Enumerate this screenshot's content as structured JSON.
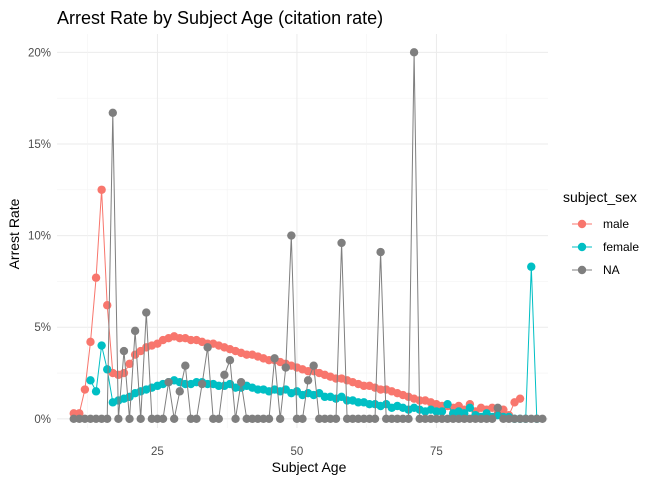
{
  "chart_data": {
    "type": "line",
    "title": "Arrest Rate by Subject Age (citation rate)",
    "xlabel": "Subject Age",
    "ylabel": "Arrest Rate",
    "xlim": [
      7,
      95
    ],
    "ylim": [
      -0.005,
      0.21
    ],
    "x_ticks": [
      25,
      50,
      75
    ],
    "x_tick_labels": [
      "25",
      "50",
      "75"
    ],
    "y_ticks": [
      0,
      0.05,
      0.1,
      0.15,
      0.2
    ],
    "y_tick_labels": [
      "0%",
      "5%",
      "10%",
      "15%",
      "20%"
    ],
    "grid": true,
    "legend": {
      "title": "subject_sex",
      "position": "right"
    },
    "series": [
      {
        "name": "male",
        "color": "#F8766D",
        "x": [
          10,
          11,
          12,
          13,
          14,
          15,
          16,
          17,
          18,
          19,
          20,
          21,
          22,
          23,
          24,
          25,
          26,
          27,
          28,
          29,
          30,
          31,
          32,
          33,
          34,
          35,
          36,
          37,
          38,
          39,
          40,
          41,
          42,
          43,
          44,
          45,
          46,
          47,
          48,
          49,
          50,
          51,
          52,
          53,
          54,
          55,
          56,
          57,
          58,
          59,
          60,
          61,
          62,
          63,
          64,
          65,
          66,
          67,
          68,
          69,
          70,
          71,
          72,
          73,
          74,
          75,
          76,
          77,
          78,
          79,
          80,
          81,
          82,
          83,
          84,
          85,
          86,
          87,
          88,
          89,
          90
        ],
        "y": [
          0.003,
          0.003,
          0.016,
          0.042,
          0.077,
          0.125,
          0.062,
          0.025,
          0.024,
          0.025,
          0.03,
          0.035,
          0.037,
          0.039,
          0.04,
          0.041,
          0.043,
          0.044,
          0.045,
          0.044,
          0.044,
          0.043,
          0.043,
          0.042,
          0.041,
          0.041,
          0.04,
          0.039,
          0.038,
          0.037,
          0.036,
          0.035,
          0.035,
          0.034,
          0.033,
          0.032,
          0.032,
          0.031,
          0.03,
          0.029,
          0.028,
          0.027,
          0.026,
          0.026,
          0.025,
          0.024,
          0.023,
          0.022,
          0.022,
          0.021,
          0.02,
          0.019,
          0.018,
          0.018,
          0.017,
          0.016,
          0.016,
          0.015,
          0.014,
          0.013,
          0.012,
          0.011,
          0.01,
          0.01,
          0.009,
          0.008,
          0.007,
          0.007,
          0.006,
          0.007,
          0.005,
          0.008,
          0.004,
          0.006,
          0.005,
          0.006,
          0.003,
          0.005,
          0.002,
          0.009,
          0.011
        ]
      },
      {
        "name": "female",
        "color": "#00BFC4",
        "x": [
          13,
          14,
          15,
          16,
          17,
          18,
          19,
          20,
          21,
          22,
          23,
          24,
          25,
          26,
          27,
          28,
          29,
          30,
          31,
          32,
          33,
          34,
          35,
          36,
          37,
          38,
          39,
          40,
          41,
          42,
          43,
          44,
          45,
          46,
          47,
          48,
          49,
          50,
          51,
          52,
          53,
          54,
          55,
          56,
          57,
          58,
          59,
          60,
          61,
          62,
          63,
          64,
          65,
          66,
          67,
          68,
          69,
          70,
          71,
          72,
          73,
          74,
          75,
          76,
          77,
          78,
          79,
          80,
          81,
          82,
          83,
          84,
          85,
          86,
          87,
          88,
          89,
          90,
          91,
          92,
          93
        ],
        "y": [
          0.021,
          0.015,
          0.04,
          0.027,
          0.009,
          0.01,
          0.011,
          0.012,
          0.014,
          0.015,
          0.016,
          0.017,
          0.018,
          0.019,
          0.02,
          0.021,
          0.02,
          0.019,
          0.019,
          0.02,
          0.02,
          0.019,
          0.019,
          0.018,
          0.018,
          0.019,
          0.017,
          0.017,
          0.018,
          0.017,
          0.016,
          0.016,
          0.015,
          0.016,
          0.015,
          0.016,
          0.014,
          0.015,
          0.013,
          0.014,
          0.013,
          0.014,
          0.012,
          0.012,
          0.011,
          0.012,
          0.01,
          0.01,
          0.009,
          0.009,
          0.008,
          0.008,
          0.007,
          0.008,
          0.006,
          0.007,
          0.006,
          0.005,
          0.006,
          0.005,
          0.004,
          0.005,
          0.004,
          0.004,
          0.008,
          0.003,
          0.004,
          0.003,
          0.006,
          0.002,
          0.001,
          0.003,
          0.001,
          0.002,
          0.001,
          0.001,
          0.0,
          0.0,
          0.0,
          0.083,
          0.0
        ]
      },
      {
        "name": "NA",
        "color": "#7F7F7F",
        "x": [
          10,
          11,
          12,
          13,
          14,
          15,
          16,
          17,
          18,
          19,
          20,
          21,
          22,
          23,
          24,
          25,
          26,
          27,
          28,
          29,
          30,
          31,
          32,
          33,
          34,
          35,
          36,
          37,
          38,
          39,
          40,
          41,
          42,
          43,
          44,
          45,
          46,
          47,
          48,
          49,
          50,
          51,
          52,
          53,
          54,
          55,
          56,
          57,
          58,
          59,
          60,
          61,
          62,
          63,
          64,
          65,
          66,
          67,
          68,
          69,
          70,
          71,
          72,
          73,
          74,
          75,
          76,
          77,
          78,
          79,
          80,
          81,
          82,
          83,
          84,
          85,
          86,
          87,
          88,
          89,
          90,
          91,
          92,
          93,
          94
        ],
        "y": [
          0,
          0,
          0,
          0,
          0,
          0,
          0,
          0.167,
          0,
          0.037,
          0,
          0.048,
          0,
          0.058,
          0,
          0,
          0,
          0.02,
          0,
          0.015,
          0.029,
          0,
          0,
          0.019,
          0.039,
          0,
          0,
          0.024,
          0.032,
          0,
          0.02,
          0,
          0,
          0,
          0,
          0,
          0.033,
          0,
          0.028,
          0.1,
          0,
          0,
          0.021,
          0.029,
          0,
          0,
          0,
          0,
          0.096,
          0,
          0,
          0,
          0,
          0,
          0,
          0.091,
          0,
          0,
          0,
          0,
          0,
          0.2,
          0,
          0,
          0,
          0,
          0,
          0,
          0,
          0,
          0,
          0,
          0,
          0,
          0,
          0,
          0.006,
          0,
          0,
          0,
          0,
          0,
          0,
          0,
          0
        ]
      }
    ]
  }
}
